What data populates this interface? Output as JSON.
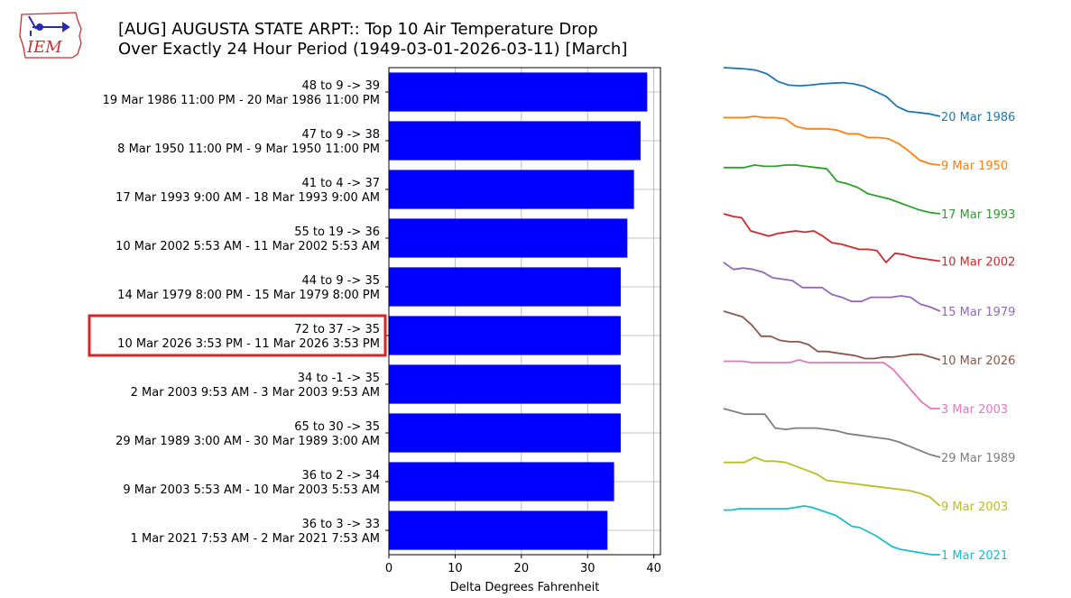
{
  "logo": {
    "text": "IEM"
  },
  "header": {
    "title_line1": "[AUG] AUGUSTA STATE ARPT:: Top 10 Air Temperature Drop",
    "title_line2": "Over Exactly 24 Hour Period (1949-03-01-2026-03-11) [March]"
  },
  "chart_data": [
    {
      "type": "bar",
      "orientation": "horizontal",
      "bar_color": "#0000ff",
      "categories": [
        {
          "line1": "48 to 9 -> 39",
          "line2": "19 Mar 1986 11:00 PM - 20 Mar 1986 11:00 PM"
        },
        {
          "line1": "47 to 9 -> 38",
          "line2": "8 Mar 1950 11:00 PM - 9 Mar 1950 11:00 PM"
        },
        {
          "line1": "41 to 4 -> 37",
          "line2": "17 Mar 1993 9:00 AM - 18 Mar 1993 9:00 AM"
        },
        {
          "line1": "55 to 19 -> 36",
          "line2": "10 Mar 2002 5:53 AM - 11 Mar 2002 5:53 AM"
        },
        {
          "line1": "44 to 9 -> 35",
          "line2": "14 Mar 1979 8:00 PM - 15 Mar 1979 8:00 PM"
        },
        {
          "line1": "72 to 37 -> 35",
          "line2": "10 Mar 2026 3:53 PM - 11 Mar 2026 3:53 PM"
        },
        {
          "line1": "34 to -1 -> 35",
          "line2": "2 Mar 2003 9:53 AM - 3 Mar 2003 9:53 AM"
        },
        {
          "line1": "65 to 30 -> 35",
          "line2": "29 Mar 1989 3:00 AM - 30 Mar 1989 3:00 AM"
        },
        {
          "line1": "36 to 2 -> 34",
          "line2": "9 Mar 2003 5:53 AM - 10 Mar 2003 5:53 AM"
        },
        {
          "line1": "36 to 3 -> 33",
          "line2": "1 Mar 2021 7:53 AM - 2 Mar 2021 7:53 AM"
        }
      ],
      "values": [
        39,
        38,
        37,
        36,
        35,
        35,
        35,
        35,
        34,
        33
      ],
      "highlighted_index": 5,
      "highlight_color": "#d62728",
      "xlabel": "Delta Degrees Fahrenheit",
      "xlim": [
        0,
        41
      ],
      "xticks": [
        0,
        10,
        20,
        30,
        40
      ],
      "grid": true
    },
    {
      "type": "line",
      "description_free": true,
      "series": [
        {
          "name": "20 Mar 1986",
          "color": "#1f77b4",
          "values": [
            48,
            47.5,
            47,
            46,
            43,
            37,
            34,
            33.5,
            34,
            35,
            35.5,
            36,
            35,
            33,
            29,
            25,
            17,
            13,
            12,
            11,
            9
          ]
        },
        {
          "name": "9 Mar 1950",
          "color": "#ff7f0e",
          "values": [
            47,
            47,
            47,
            48,
            47,
            47,
            46,
            40,
            38,
            38,
            38,
            37,
            34,
            34,
            31,
            31,
            30,
            26,
            20,
            13,
            10,
            9
          ]
        },
        {
          "name": "17 Mar 1993",
          "color": "#2ca02c",
          "values": [
            41,
            41,
            41,
            43,
            42,
            42,
            43,
            43,
            42,
            41,
            40,
            30,
            28,
            25,
            20,
            18,
            16,
            13,
            10,
            7,
            5,
            4
          ]
        },
        {
          "name": "10 Mar 2002",
          "color": "#d62728",
          "values": [
            55,
            53,
            52,
            42,
            40,
            38,
            40,
            41,
            42,
            41,
            42,
            38,
            33,
            32,
            30,
            28,
            28,
            27,
            18,
            25,
            24,
            22,
            21,
            20,
            19
          ]
        },
        {
          "name": "15 Mar 1979",
          "color": "#9467bd",
          "values": [
            44,
            39,
            40,
            39,
            37,
            33,
            32,
            31,
            26,
            26,
            26,
            21,
            19,
            16,
            16,
            19,
            19,
            19,
            20,
            19,
            14,
            12,
            9
          ]
        },
        {
          "name": "10 Mar 2026",
          "color": "#8c564b",
          "values": [
            72,
            70,
            68,
            62,
            54,
            54,
            51,
            50,
            50,
            48,
            43,
            43,
            42,
            41,
            40,
            38,
            38,
            39,
            39,
            40,
            41,
            41,
            39,
            37
          ]
        },
        {
          "name": "3 Mar 2003",
          "color": "#e377c2",
          "values": [
            34,
            34,
            34,
            33,
            33,
            33,
            33,
            33,
            35,
            33,
            33,
            33,
            33,
            33,
            33,
            33,
            33,
            33,
            28,
            20,
            12,
            4,
            -1,
            -1
          ]
        },
        {
          "name": "29 Mar 1989",
          "color": "#7f7f7f",
          "values": [
            65,
            63,
            61,
            61,
            61,
            51,
            50,
            51,
            51,
            51,
            50,
            49,
            47,
            46,
            45,
            44,
            43,
            41,
            38,
            35,
            32,
            30
          ]
        },
        {
          "name": "9 Mar 2003",
          "color": "#bcbd22",
          "values": [
            36,
            36,
            36,
            40,
            37,
            37,
            36,
            33,
            30,
            27,
            22,
            21,
            20,
            19,
            18,
            17,
            16,
            15,
            14,
            12,
            9,
            2
          ]
        },
        {
          "name": "1 Mar 2021",
          "color": "#17becf",
          "values": [
            36,
            36,
            37,
            37,
            37,
            37,
            37,
            37,
            37,
            38,
            39,
            38,
            36,
            34,
            32,
            28,
            24,
            23,
            20,
            17,
            13,
            9,
            7,
            6,
            5,
            4,
            3,
            3
          ]
        }
      ]
    }
  ]
}
